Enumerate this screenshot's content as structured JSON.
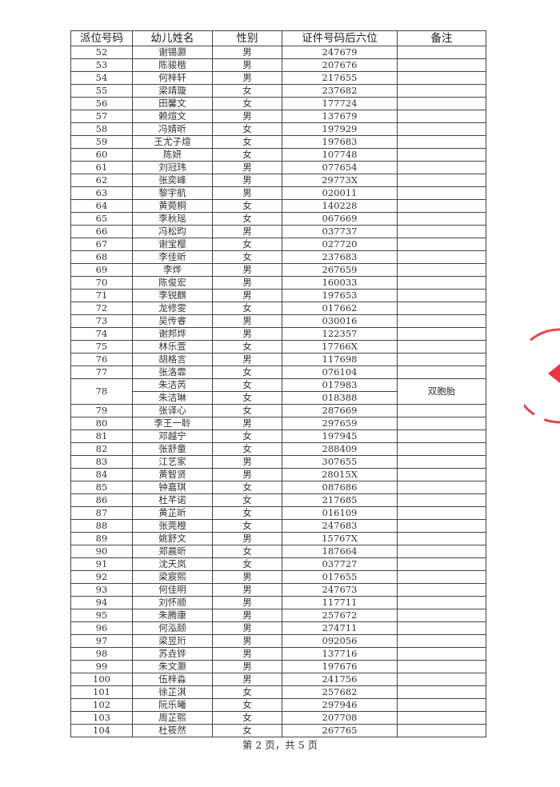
{
  "table": {
    "headers": [
      "派位号码",
      "幼儿姓名",
      "性别",
      "证件号码后六位",
      "备注"
    ],
    "rows": [
      {
        "no": "52",
        "name": "谢锡灏",
        "gender": "男",
        "id": "247679"
      },
      {
        "no": "53",
        "name": "陈骏楷",
        "gender": "男",
        "id": "207676"
      },
      {
        "no": "54",
        "name": "何梓轩",
        "gender": "男",
        "id": "217655"
      },
      {
        "no": "55",
        "name": "梁靖璇",
        "gender": "女",
        "id": "237682"
      },
      {
        "no": "56",
        "name": "田馨文",
        "gender": "女",
        "id": "177724"
      },
      {
        "no": "57",
        "name": "赖煊文",
        "gender": "男",
        "id": "137679"
      },
      {
        "no": "58",
        "name": "冯婧昕",
        "gender": "女",
        "id": "197929"
      },
      {
        "no": "59",
        "name": "王尤子煊",
        "gender": "女",
        "id": "197683"
      },
      {
        "no": "60",
        "name": "陈妍",
        "gender": "女",
        "id": "107748"
      },
      {
        "no": "61",
        "name": "刘冠玮",
        "gender": "男",
        "id": "077654"
      },
      {
        "no": "62",
        "name": "张奕峰",
        "gender": "男",
        "id": "29773X"
      },
      {
        "no": "63",
        "name": "黎宇航",
        "gender": "男",
        "id": "020011"
      },
      {
        "no": "64",
        "name": "黄菀桐",
        "gender": "女",
        "id": "140228"
      },
      {
        "no": "65",
        "name": "李秋瑶",
        "gender": "女",
        "id": "067669"
      },
      {
        "no": "66",
        "name": "冯松昀",
        "gender": "男",
        "id": "037737"
      },
      {
        "no": "67",
        "name": "谢宝樱",
        "gender": "女",
        "id": "027720"
      },
      {
        "no": "68",
        "name": "李佳昕",
        "gender": "女",
        "id": "237683"
      },
      {
        "no": "69",
        "name": "李烨",
        "gender": "男",
        "id": "267659"
      },
      {
        "no": "70",
        "name": "陈俊宏",
        "gender": "男",
        "id": "160033"
      },
      {
        "no": "71",
        "name": "李锐麒",
        "gender": "男",
        "id": "197653"
      },
      {
        "no": "72",
        "name": "龙修雯",
        "gender": "女",
        "id": "017662"
      },
      {
        "no": "73",
        "name": "吴传睿",
        "gender": "男",
        "id": "030016"
      },
      {
        "no": "74",
        "name": "谢邦烨",
        "gender": "男",
        "id": "122357"
      },
      {
        "no": "75",
        "name": "林乐萱",
        "gender": "女",
        "id": "17766X"
      },
      {
        "no": "76",
        "name": "胡格言",
        "gender": "男",
        "id": "117698"
      },
      {
        "no": "77",
        "name": "张洛霏",
        "gender": "女",
        "id": "076104"
      },
      {
        "no": "78",
        "note": "双胞胎",
        "children": [
          {
            "name": "朱洁芮",
            "gender": "女",
            "id": "017983"
          },
          {
            "name": "朱洁琳",
            "gender": "女",
            "id": "018388"
          }
        ]
      },
      {
        "no": "79",
        "name": "张译心",
        "gender": "女",
        "id": "287669"
      },
      {
        "no": "80",
        "name": "李王一聆",
        "gender": "男",
        "id": "297659"
      },
      {
        "no": "81",
        "name": "邓越宁",
        "gender": "女",
        "id": "197945"
      },
      {
        "no": "82",
        "name": "张舒童",
        "gender": "女",
        "id": "288409"
      },
      {
        "no": "83",
        "name": "江艺家",
        "gender": "男",
        "id": "307655"
      },
      {
        "no": "84",
        "name": "黄智贤",
        "gender": "男",
        "id": "28015X"
      },
      {
        "no": "85",
        "name": "钟嘉琪",
        "gender": "女",
        "id": "087686"
      },
      {
        "no": "86",
        "name": "杜芊诺",
        "gender": "女",
        "id": "217685"
      },
      {
        "no": "87",
        "name": "黄芷昕",
        "gender": "女",
        "id": "016109"
      },
      {
        "no": "88",
        "name": "张莞橙",
        "gender": "女",
        "id": "247683"
      },
      {
        "no": "89",
        "name": "姚舒文",
        "gender": "男",
        "id": "15767X"
      },
      {
        "no": "90",
        "name": "郑晨昕",
        "gender": "女",
        "id": "187664"
      },
      {
        "no": "91",
        "name": "沈天岚",
        "gender": "女",
        "id": "037727"
      },
      {
        "no": "92",
        "name": "梁宸熙",
        "gender": "男",
        "id": "017655"
      },
      {
        "no": "93",
        "name": "何佳明",
        "gender": "男",
        "id": "247673"
      },
      {
        "no": "94",
        "name": "刘怀顺",
        "gender": "男",
        "id": "117711"
      },
      {
        "no": "95",
        "name": "朱腾康",
        "gender": "男",
        "id": "257672"
      },
      {
        "no": "96",
        "name": "何泓颐",
        "gender": "男",
        "id": "274711"
      },
      {
        "no": "97",
        "name": "梁昱珩",
        "gender": "男",
        "id": "092056"
      },
      {
        "no": "98",
        "name": "苏垚铧",
        "gender": "男",
        "id": "137716"
      },
      {
        "no": "99",
        "name": "朱文灏",
        "gender": "男",
        "id": "197676"
      },
      {
        "no": "100",
        "name": "伍梓淼",
        "gender": "男",
        "id": "241756"
      },
      {
        "no": "101",
        "name": "徐芷淇",
        "gender": "女",
        "id": "257682"
      },
      {
        "no": "102",
        "name": "阮乐曦",
        "gender": "女",
        "id": "297946"
      },
      {
        "no": "103",
        "name": "周芷熙",
        "gender": "女",
        "id": "207708"
      },
      {
        "no": "104",
        "name": "杜筱然",
        "gender": "女",
        "id": "267765"
      }
    ]
  },
  "footer": "第 2 页，共 5 页",
  "stamp": {
    "color": "#e8202a"
  }
}
